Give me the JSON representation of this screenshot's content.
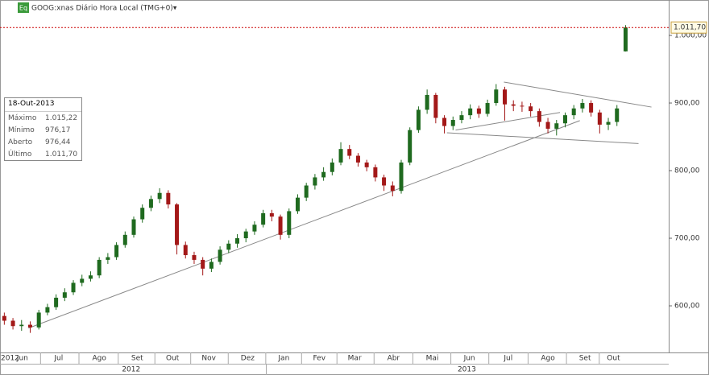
{
  "chart_data": {
    "type": "candlestick",
    "title": "GOOG:xnas Diário Hora Local (TMG+0)▾",
    "icon_label": "Eq",
    "up_color": "#1f6a1f",
    "down_color": "#a31818",
    "xlim": [
      -0.5,
      77
    ],
    "ylim": [
      531,
      1052.4
    ],
    "yticks": [
      {
        "value": 1000,
        "label": "1.000,00"
      },
      {
        "value": 900,
        "label": "900,00"
      },
      {
        "value": 800,
        "label": "800,00"
      },
      {
        "value": 700,
        "label": "700,00"
      },
      {
        "value": 600,
        "label": "600,00"
      }
    ],
    "last_price": {
      "value": 1011.7,
      "label": "1.011,70",
      "color": "#cc0000"
    },
    "x_start_label": "2012",
    "months": [
      {
        "value": 2.1,
        "label": "Jun"
      },
      {
        "value": 6.3,
        "label": "Jul"
      },
      {
        "value": 11,
        "label": "Ago"
      },
      {
        "value": 15.4,
        "label": "Set"
      },
      {
        "value": 19.5,
        "label": "Out"
      },
      {
        "value": 23.7,
        "label": "Nov"
      },
      {
        "value": 28.2,
        "label": "Dez"
      },
      {
        "value": 32.4,
        "label": "Jan"
      },
      {
        "value": 36.5,
        "label": "Fev"
      },
      {
        "value": 40.6,
        "label": "Mar"
      },
      {
        "value": 45.1,
        "label": "Abr"
      },
      {
        "value": 49.6,
        "label": "Mai"
      },
      {
        "value": 53.9,
        "label": "Jun"
      },
      {
        "value": 58.4,
        "label": "Jul"
      },
      {
        "value": 63,
        "label": "Ago"
      },
      {
        "value": 67.3,
        "label": "Set"
      },
      {
        "value": 70.6,
        "label": "Out"
      }
    ],
    "years": [
      {
        "value": 14.7,
        "label": "2012"
      },
      {
        "value": 53.6,
        "label": "2013"
      }
    ],
    "open": [
      585,
      578,
      570,
      572,
      568,
      590,
      598,
      612,
      620,
      634,
      640,
      645,
      668,
      672,
      690,
      705,
      728,
      745,
      758,
      767,
      750,
      690,
      675,
      668,
      655,
      665,
      683,
      692,
      700,
      710,
      720,
      737,
      732,
      705,
      740,
      760,
      778,
      790,
      798,
      812,
      832,
      822,
      812,
      805,
      790,
      778,
      770,
      812,
      860,
      890,
      912,
      878,
      866,
      875,
      882,
      892,
      884,
      900,
      920,
      898,
      896,
      895,
      888,
      872,
      862,
      870,
      882,
      892,
      900,
      886,
      868,
      872,
      976.44
    ],
    "close": [
      578,
      570,
      572,
      568,
      590,
      598,
      612,
      620,
      634,
      640,
      645,
      668,
      672,
      690,
      705,
      728,
      745,
      758,
      767,
      750,
      690,
      675,
      668,
      655,
      665,
      683,
      692,
      700,
      710,
      720,
      737,
      732,
      705,
      740,
      760,
      778,
      790,
      798,
      812,
      832,
      822,
      812,
      805,
      790,
      778,
      770,
      812,
      860,
      890,
      912,
      878,
      866,
      875,
      882,
      892,
      884,
      900,
      920,
      898,
      896,
      895,
      888,
      872,
      862,
      870,
      882,
      892,
      900,
      886,
      868,
      872,
      892,
      1011.7
    ],
    "high": [
      590,
      582,
      579,
      577,
      594,
      603,
      617,
      626,
      638,
      646,
      651,
      672,
      678,
      694,
      710,
      732,
      750,
      763,
      774,
      771,
      752,
      695,
      680,
      672,
      670,
      688,
      697,
      706,
      714,
      725,
      742,
      742,
      735,
      744,
      765,
      782,
      795,
      805,
      818,
      842,
      838,
      826,
      816,
      809,
      794,
      784,
      816,
      864,
      895,
      920,
      915,
      882,
      880,
      888,
      898,
      896,
      905,
      928,
      924,
      904,
      902,
      900,
      892,
      878,
      875,
      886,
      897,
      906,
      904,
      890,
      878,
      897,
      1015.22
    ],
    "low": [
      572,
      565,
      563,
      560,
      565,
      586,
      594,
      607,
      616,
      629,
      636,
      641,
      662,
      668,
      686,
      701,
      723,
      740,
      752,
      744,
      676,
      670,
      662,
      645,
      650,
      661,
      678,
      686,
      694,
      705,
      716,
      725,
      698,
      700,
      736,
      755,
      772,
      785,
      793,
      808,
      817,
      806,
      799,
      784,
      770,
      762,
      766,
      808,
      856,
      884,
      870,
      855,
      860,
      870,
      876,
      878,
      880,
      896,
      874,
      888,
      887,
      880,
      865,
      855,
      852,
      864,
      876,
      886,
      880,
      855,
      860,
      866,
      976.17
    ],
    "trendlines": [
      {
        "x": [
          2.8,
          66.7
        ],
        "y": [
          567,
          874
        ]
      },
      {
        "x": [
          57.9,
          75
        ],
        "y": [
          931,
          894
        ]
      },
      {
        "x": [
          51.3,
          73.5
        ],
        "y": [
          856,
          840
        ]
      },
      {
        "x": [
          52.3,
          64.4
        ],
        "y": [
          860,
          886
        ]
      }
    ],
    "trendline_color": "#888888"
  },
  "info_box": {
    "date": "18-Out-2013",
    "rows": [
      [
        "Máximo",
        "1.015,22"
      ],
      [
        "Mínimo",
        "976,17"
      ],
      [
        "Aberto",
        "976,44"
      ],
      [
        "Último",
        "1.011,70"
      ]
    ]
  }
}
